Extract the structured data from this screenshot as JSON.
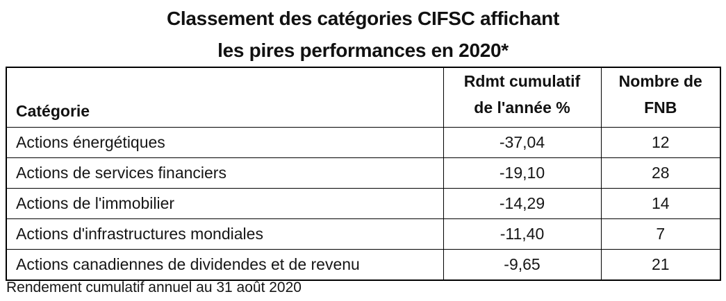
{
  "title": {
    "line1": "Classement des catégories CIFSC affichant",
    "line2": "les pires performances en 2020*"
  },
  "table": {
    "headers": {
      "category": "Catégorie",
      "return_line1": "Rdmt cumulatif",
      "return_line2": "de l'année %",
      "count_line1": "Nombre de",
      "count_line2": "FNB"
    },
    "rows": [
      {
        "category": "Actions énergétiques",
        "return": "-37,04",
        "count": "12"
      },
      {
        "category": "Actions de services financiers",
        "return": "-19,10",
        "count": "28"
      },
      {
        "category": "Actions de l'immobilier",
        "return": "-14,29",
        "count": "14"
      },
      {
        "category": "Actions d'infrastructures mondiales",
        "return": "-11,40",
        "count": "7"
      },
      {
        "category": "Actions canadiennes de dividendes et de revenu",
        "return": "-9,65",
        "count": "21"
      }
    ]
  },
  "footnote": "Rendement cumulatif annuel au 31 août 2020",
  "colors": {
    "text": "#161616",
    "title_text": "#111111",
    "border": "#000000",
    "background": "#ffffff"
  },
  "chart_data": {
    "type": "table",
    "title": "Classement des catégories CIFSC affichant les pires performances en 2020*",
    "columns": [
      "Catégorie",
      "Rdmt cumulatif de l'année %",
      "Nombre de FNB"
    ],
    "rows": [
      [
        "Actions énergétiques",
        -37.04,
        12
      ],
      [
        "Actions de services financiers",
        -19.1,
        28
      ],
      [
        "Actions de l'immobilier",
        -14.29,
        14
      ],
      [
        "Actions d'infrastructures mondiales",
        -11.4,
        7
      ],
      [
        "Actions canadiennes de dividendes et de revenu",
        -9.65,
        21
      ]
    ],
    "value_format": "french decimal comma",
    "footnote": "Rendement cumulatif annuel au 31 août 2020"
  }
}
